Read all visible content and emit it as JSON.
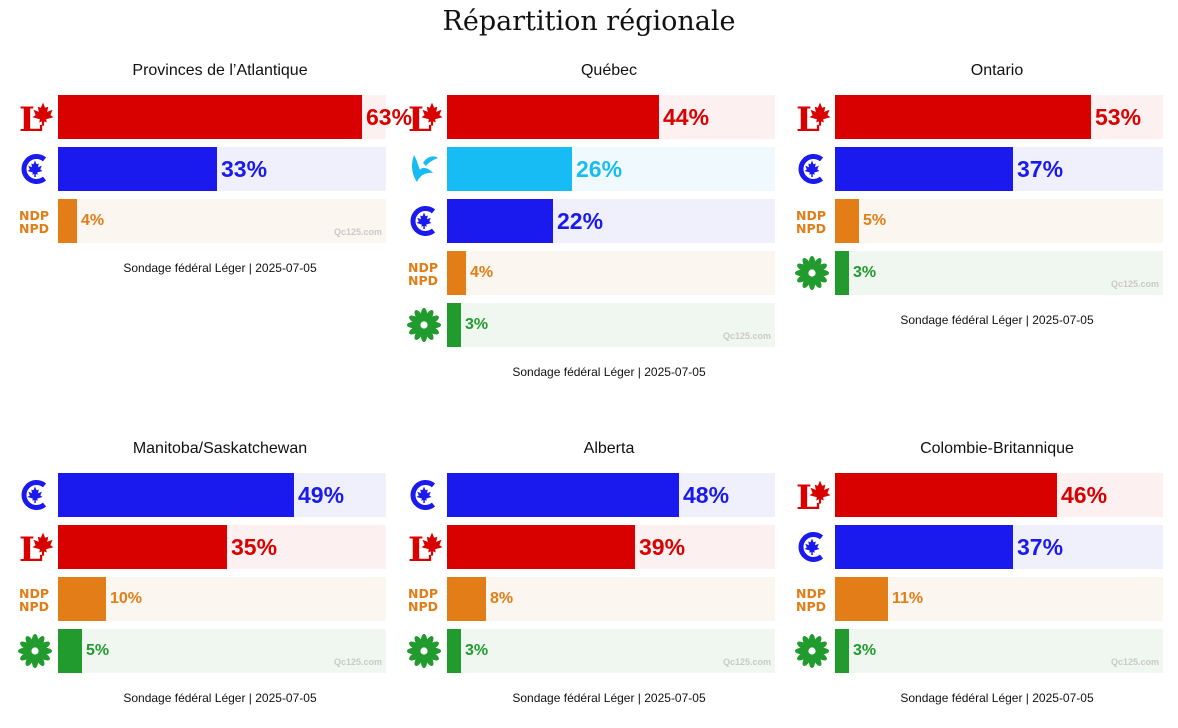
{
  "title": "Répartition régionale",
  "colors": {
    "LPC": "#d90000",
    "CPC": "#1a1aee",
    "BQ": "#17bcf4",
    "NDP": "#e27d17",
    "GPC": "#229b2e"
  },
  "tracks": {
    "LPC": "#fcf0f0",
    "CPC": "#f0f0fd",
    "BQ": "#f0fafe",
    "NDP": "#fcf6f1",
    "GPC": "#f0f7f0"
  },
  "logo_icons": {
    "LPC": "liberal-logo-icon",
    "CPC": "conservative-logo-icon",
    "BQ": "bloc-logo-icon",
    "NDP": "ndp-logo-icon",
    "GPC": "green-logo-icon"
  },
  "ndp_logo_text": [
    "NDP",
    "NPD"
  ],
  "chart_data": [
    {
      "type": "bar",
      "title": "Provinces de l’Atlantique",
      "categories": [
        "LPC",
        "CPC",
        "NDP"
      ],
      "values": [
        63,
        33,
        4
      ],
      "labels": [
        "63%",
        "33%",
        "4%"
      ],
      "watermark": "Qc125.com",
      "source": "Sondage fédéral Léger | 2025-07-05"
    },
    {
      "type": "bar",
      "title": "Québec",
      "categories": [
        "LPC",
        "BQ",
        "CPC",
        "NDP",
        "GPC"
      ],
      "values": [
        44,
        26,
        22,
        4,
        3
      ],
      "labels": [
        "44%",
        "26%",
        "22%",
        "4%",
        "3%"
      ],
      "watermark": "Qc125.com",
      "source": "Sondage fédéral Léger | 2025-07-05"
    },
    {
      "type": "bar",
      "title": "Ontario",
      "categories": [
        "LPC",
        "CPC",
        "NDP",
        "GPC"
      ],
      "values": [
        53,
        37,
        5,
        3
      ],
      "labels": [
        "53%",
        "37%",
        "5%",
        "3%"
      ],
      "watermark": "Qc125.com",
      "source": "Sondage fédéral Léger | 2025-07-05"
    },
    {
      "type": "bar",
      "title": "Manitoba/Saskatchewan",
      "categories": [
        "CPC",
        "LPC",
        "NDP",
        "GPC"
      ],
      "values": [
        49,
        35,
        10,
        5
      ],
      "labels": [
        "49%",
        "35%",
        "10%",
        "5%"
      ],
      "watermark": "Qc125.com",
      "source": "Sondage fédéral Léger | 2025-07-05"
    },
    {
      "type": "bar",
      "title": "Alberta",
      "categories": [
        "CPC",
        "LPC",
        "NDP",
        "GPC"
      ],
      "values": [
        48,
        39,
        8,
        3
      ],
      "labels": [
        "48%",
        "39%",
        "8%",
        "3%"
      ],
      "watermark": "Qc125.com",
      "source": "Sondage fédéral Léger | 2025-07-05"
    },
    {
      "type": "bar",
      "title": "Colombie-Britannique",
      "categories": [
        "LPC",
        "CPC",
        "NDP",
        "GPC"
      ],
      "values": [
        46,
        37,
        11,
        3
      ],
      "labels": [
        "46%",
        "37%",
        "11%",
        "3%"
      ],
      "watermark": "Qc125.com",
      "source": "Sondage fédéral Léger | 2025-07-05"
    }
  ]
}
